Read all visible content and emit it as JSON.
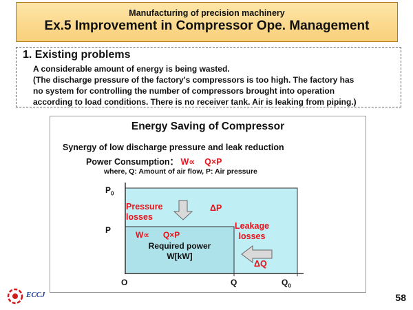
{
  "header": {
    "subtitle": "Manufacturing of precision machinery",
    "title": "Ex.5  Improvement in Compressor Ope. Management"
  },
  "problems": {
    "heading": "1. Existing problems",
    "lines": [
      "A considerable amount of energy is being wasted.",
      "(The discharge pressure of the factory's compressors is too high. The factory has",
      "no system for controlling the number of compressors brought into operation",
      "according to load conditions. There is no receiver tank. Air is leaking from piping.)"
    ]
  },
  "diagram": {
    "title": "Energy Saving of Compressor",
    "subtitle": "Synergy of low discharge pressure and leak reduction",
    "power_label": "Power Consumption：",
    "power_formula": "W∝    Q×P",
    "where_text": "where, Q: Amount of air flow, P: Air pressure",
    "y_label_p0": "P",
    "y_label_p0_sub": "0",
    "y_label_p": "P",
    "x_label_o": "O",
    "x_label_q": "Q",
    "x_label_q0": "Q",
    "x_label_q0_sub": "0",
    "pressure_losses": [
      "Pressure",
      "losses"
    ],
    "delta_p": "ΔP",
    "leakage_losses": [
      "Leakage",
      "losses"
    ],
    "delta_q": "ΔQ",
    "inner_formula": "W∝      Q×P",
    "required_power": [
      "Required power",
      "W[kW]"
    ]
  },
  "footer": {
    "logo_text": "ECCJ",
    "page_number": "58"
  },
  "colors": {
    "accent_red": "#e8131b",
    "title_bg": "#f9cf7a",
    "outer_fill": "#bfeef4",
    "inner_fill": "#aee2ea"
  }
}
